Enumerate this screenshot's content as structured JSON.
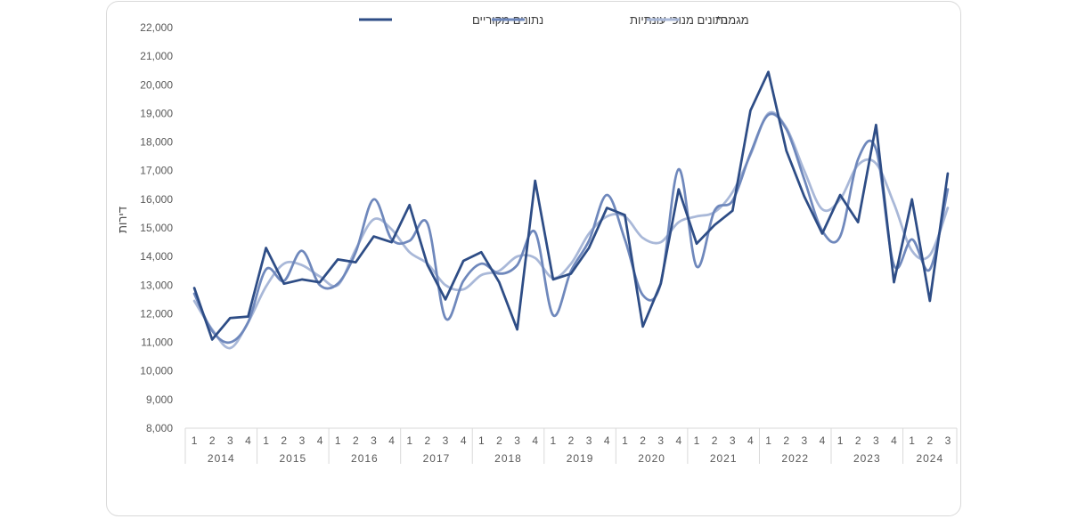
{
  "chart_data": {
    "type": "line",
    "ylabel": "דירות",
    "ylim": [
      8000,
      22000
    ],
    "ystep": 1000,
    "years": [
      "2014",
      "2015",
      "2016",
      "2017",
      "2018",
      "2019",
      "2020",
      "2021",
      "2022",
      "2023",
      "2024"
    ],
    "quarters_per_year": [
      4,
      4,
      4,
      4,
      4,
      4,
      4,
      4,
      4,
      4,
      3
    ],
    "quarter_labels": [
      "1",
      "2",
      "3",
      "4"
    ],
    "y_ticks": [
      "8,000",
      "9,000",
      "10,000",
      "11,000",
      "12,000",
      "13,000",
      "14,000",
      "15,000",
      "16,000",
      "17,000",
      "18,000",
      "19,000",
      "20,000",
      "21,000",
      "22,000"
    ],
    "legend_position": "top",
    "grid": false,
    "series": [
      {
        "name": "נתונים מקוריים",
        "color": "#2e4d86",
        "values": [
          12900,
          11100,
          11850,
          11900,
          14300,
          13050,
          13200,
          13100,
          13900,
          13800,
          14700,
          14500,
          15800,
          13700,
          12500,
          13850,
          14150,
          13100,
          11450,
          16650,
          13200,
          13400,
          14300,
          15700,
          15450,
          11550,
          13050,
          16350,
          14450,
          15100,
          15600,
          19100,
          20450,
          17700,
          16100,
          14800,
          16150,
          15200,
          18600,
          13100,
          16000,
          12450,
          16900
        ]
      },
      {
        "name": "נתונים מנוכי עונתיות",
        "color": "#6f88bc",
        "values": [
          12700,
          11400,
          11000,
          11700,
          13550,
          13150,
          14200,
          13000,
          13050,
          14150,
          16000,
          14600,
          14550,
          15150,
          11850,
          13150,
          13750,
          13400,
          13700,
          14850,
          11950,
          13500,
          14550,
          16150,
          14600,
          12650,
          13050,
          17050,
          13650,
          15600,
          15950,
          17600,
          18950,
          18450,
          16700,
          14900,
          14700,
          17400,
          17750,
          13700,
          14600,
          13550,
          16350
        ]
      },
      {
        "name": "מגמה*",
        "color": "#a9b8d8",
        "values": [
          12450,
          11450,
          10800,
          11700,
          12950,
          13750,
          13700,
          13300,
          13000,
          14250,
          15300,
          14950,
          14150,
          13750,
          13000,
          12850,
          13350,
          13500,
          14000,
          13950,
          13250,
          13750,
          14800,
          15400,
          15400,
          14650,
          14500,
          15200,
          15400,
          15550,
          16250,
          17550,
          19000,
          18500,
          17000,
          15650,
          16000,
          17200,
          17250,
          15850,
          14200,
          14050,
          15700
        ]
      }
    ]
  }
}
